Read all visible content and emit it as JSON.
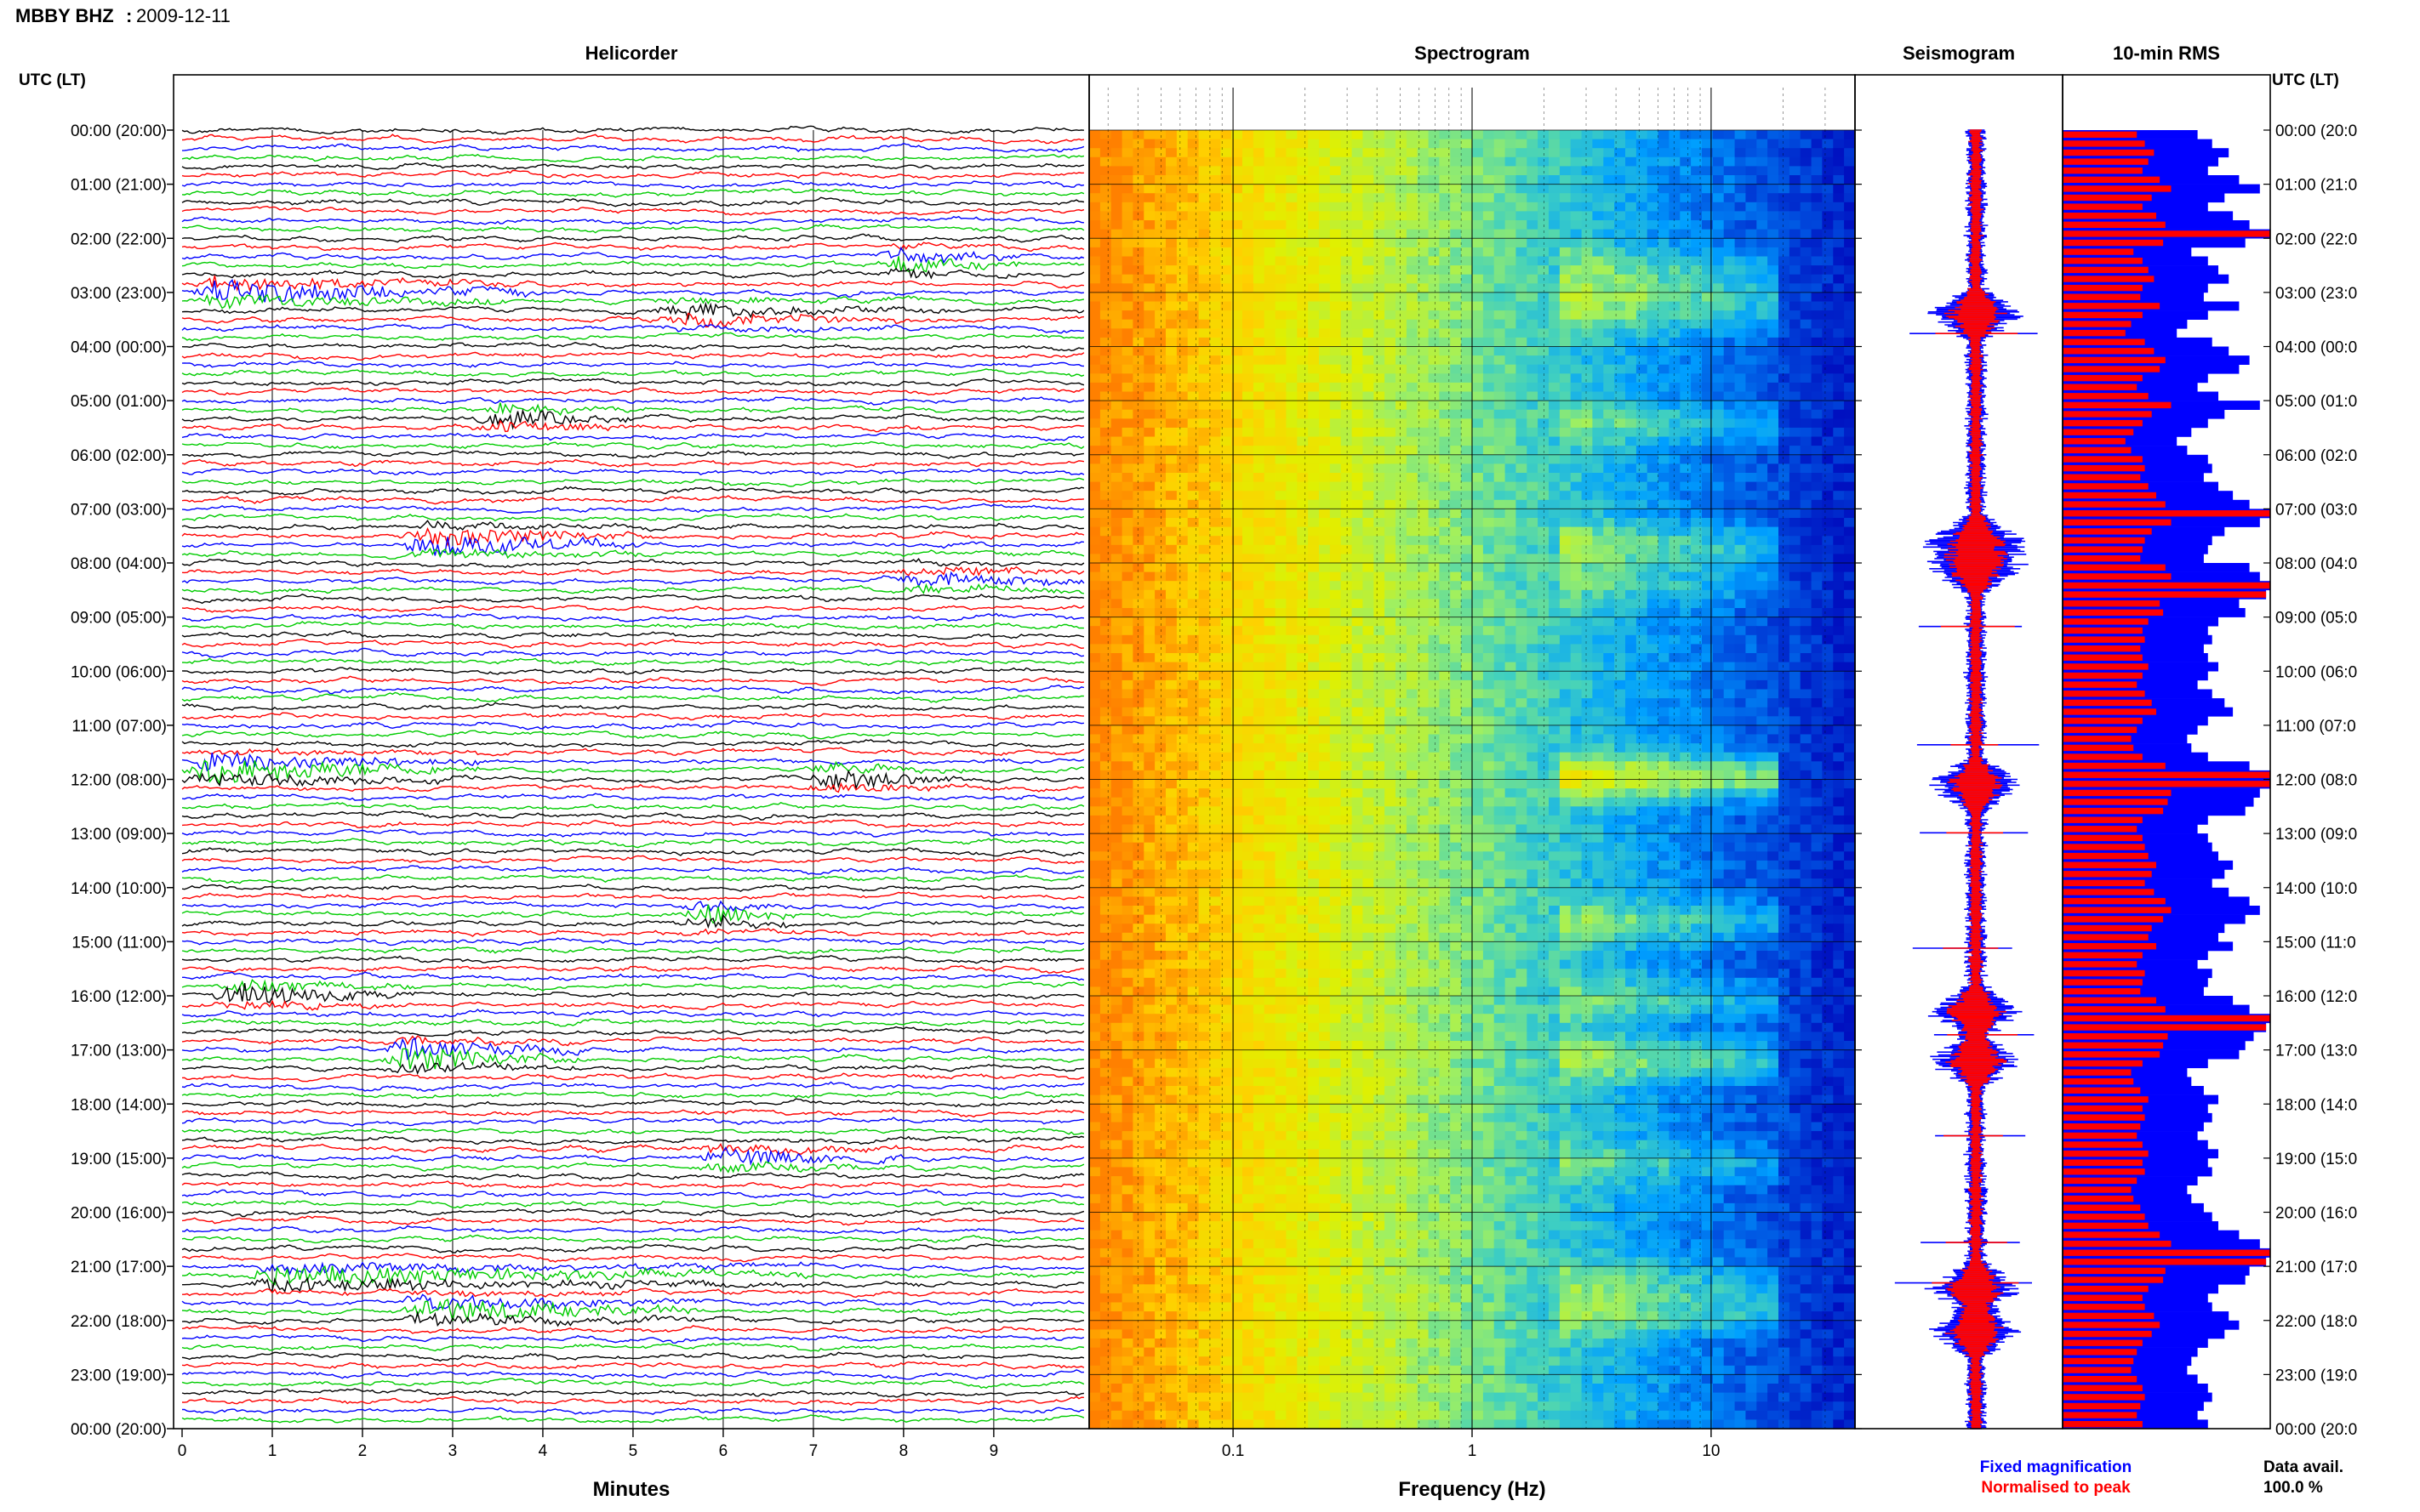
{
  "header": {
    "station": "MBBY BHZ",
    "separator": ":",
    "date": "2009-12-11"
  },
  "panels": {
    "helicorder": "Helicorder",
    "spectrogram": "Spectrogram",
    "seismogram": "Seismogram",
    "rms": "10-min RMS"
  },
  "axis_labels": {
    "left_time": "UTC (LT)",
    "right_time": "UTC (LT)",
    "minutes": "Minutes",
    "frequency": "Frequency (Hz)"
  },
  "legend": {
    "fixed": "Fixed magnification",
    "normalised": "Normalised to peak",
    "fixed_color": "#0000ff",
    "normalised_color": "#ff0000"
  },
  "data_availability": {
    "label": "Data avail.",
    "value": "100.0 %"
  },
  "chart_data": {
    "type": "heatmap",
    "time_labels": [
      "00:00 (20:00)",
      "01:00 (21:00)",
      "02:00 (22:00)",
      "03:00 (23:00)",
      "04:00 (00:00)",
      "05:00 (01:00)",
      "06:00 (02:00)",
      "07:00 (03:00)",
      "08:00 (04:00)",
      "09:00 (05:00)",
      "10:00 (06:00)",
      "11:00 (07:00)",
      "12:00 (08:00)",
      "13:00 (09:00)",
      "14:00 (10:00)",
      "15:00 (11:00)",
      "16:00 (12:00)",
      "17:00 (13:00)",
      "18:00 (14:00)",
      "19:00 (15:00)",
      "20:00 (16:00)",
      "21:00 (17:00)",
      "22:00 (18:00)",
      "23:00 (19:00)",
      "00:00 (20:00)"
    ],
    "right_time_labels": [
      "00:00 (20:0",
      "01:00 (21:0",
      "02:00 (22:0",
      "03:00 (23:0",
      "04:00 (00:0",
      "05:00 (01:0",
      "06:00 (02:0",
      "07:00 (03:0",
      "08:00 (04:0",
      "09:00 (05:0",
      "10:00 (06:0",
      "11:00 (07:0",
      "12:00 (08:0",
      "13:00 (09:0",
      "14:00 (10:0",
      "15:00 (11:0",
      "16:00 (12:0",
      "17:00 (13:0",
      "18:00 (14:0",
      "19:00 (15:0",
      "20:00 (16:0",
      "21:00 (17:0",
      "22:00 (18:0",
      "23:00 (19:0",
      "00:00 (20:0"
    ],
    "helicorder": {
      "minute_ticks": [
        "0",
        "1",
        "2",
        "3",
        "4",
        "5",
        "6",
        "7",
        "8",
        "9"
      ],
      "xlim_minutes": [
        0,
        10
      ],
      "rows_per_hour": 6,
      "trace_colors": [
        "#000000",
        "#ff0000",
        "#0000ff",
        "#00cc00"
      ],
      "events": [
        {
          "hour": 2.45,
          "minute": 8.0,
          "amp": 3.0,
          "width": 1.3
        },
        {
          "hour": 3.0,
          "minute": 0.4,
          "amp": 3.5,
          "width": 3.5
        },
        {
          "hour": 3.4,
          "minute": 5.5,
          "amp": 2.2,
          "width": 3.0
        },
        {
          "hour": 5.35,
          "minute": 3.5,
          "amp": 2.8,
          "width": 1.5
        },
        {
          "hour": 7.6,
          "minute": 2.7,
          "amp": 4.0,
          "width": 2.5
        },
        {
          "hour": 8.3,
          "minute": 8.2,
          "amp": 2.5,
          "width": 2.0
        },
        {
          "hour": 11.8,
          "minute": 0.3,
          "amp": 4.5,
          "width": 3.0
        },
        {
          "hour": 12.0,
          "minute": 7.2,
          "amp": 3.0,
          "width": 1.5
        },
        {
          "hour": 14.55,
          "minute": 5.8,
          "amp": 3.5,
          "width": 1.0
        },
        {
          "hour": 16.0,
          "minute": 0.6,
          "amp": 3.0,
          "width": 2.0
        },
        {
          "hour": 17.1,
          "minute": 2.5,
          "amp": 4.5,
          "width": 2.0
        },
        {
          "hour": 19.0,
          "minute": 6.0,
          "amp": 2.5,
          "width": 2.0
        },
        {
          "hour": 21.2,
          "minute": 1.0,
          "amp": 3.0,
          "width": 6.0
        },
        {
          "hour": 21.8,
          "minute": 2.7,
          "amp": 4.0,
          "width": 3.0
        }
      ]
    },
    "spectrogram": {
      "xscale": "log",
      "xlim_hz": [
        0.025,
        40
      ],
      "ticks_hz": [
        0.1,
        1,
        10
      ],
      "tick_labels": [
        "0.1",
        "1",
        "10"
      ],
      "colormap": [
        "#ff8000",
        "#ffd000",
        "#e0f000",
        "#a0f060",
        "#40d0c0",
        "#00a0ff",
        "#0050e0",
        "#0010c0"
      ]
    },
    "seismogram": {
      "fixed_color": "#0000ff",
      "normalised_color": "#ff0000",
      "bursts_hour": [
        3.4,
        7.6,
        8.1,
        12.1,
        16.3,
        17.2,
        21.4,
        22.2
      ]
    },
    "rms_10min": {
      "relative_level": [
        0.65,
        0.72,
        0.8,
        0.75,
        0.7,
        0.85,
        0.95,
        0.78,
        0.7,
        0.82,
        0.9,
        1.0,
        0.88,
        0.62,
        0.7,
        0.75,
        0.8,
        0.7,
        0.68,
        0.85,
        0.7,
        0.6,
        0.55,
        0.72,
        0.8,
        0.9,
        0.85,
        0.7,
        0.65,
        0.75,
        0.95,
        0.78,
        0.7,
        0.62,
        0.55,
        0.6,
        0.7,
        0.72,
        0.68,
        0.75,
        0.82,
        0.9,
        1.0,
        0.95,
        0.78,
        0.72,
        0.7,
        0.68,
        0.9,
        0.95,
        1.0,
        0.98,
        0.85,
        0.88,
        0.75,
        0.7,
        0.72,
        0.68,
        0.7,
        0.75,
        0.7,
        0.65,
        0.72,
        0.78,
        0.82,
        0.7,
        0.65,
        0.6,
        0.62,
        0.7,
        0.9,
        1.0,
        1.0,
        0.95,
        0.92,
        0.88,
        0.7,
        0.65,
        0.7,
        0.72,
        0.75,
        0.82,
        0.78,
        0.72,
        0.8,
        0.9,
        0.95,
        0.88,
        0.78,
        0.75,
        0.82,
        0.7,
        0.65,
        0.72,
        0.7,
        0.68,
        0.82,
        0.9,
        1.0,
        0.98,
        0.92,
        0.88,
        0.85,
        0.7,
        0.6,
        0.62,
        0.68,
        0.75,
        0.7,
        0.72,
        0.68,
        0.65,
        0.7,
        0.75,
        0.7,
        0.72,
        0.65,
        0.6,
        0.62,
        0.68,
        0.72,
        0.75,
        0.85,
        0.95,
        1.0,
        0.98,
        0.9,
        0.88,
        0.75,
        0.7,
        0.72,
        0.8,
        0.85,
        0.78,
        0.7,
        0.65,
        0.62,
        0.6,
        0.65,
        0.7,
        0.72,
        0.68,
        0.65,
        0.7
      ],
      "fixed_color": "#0000ff",
      "normalised_color": "#ff0000"
    }
  }
}
